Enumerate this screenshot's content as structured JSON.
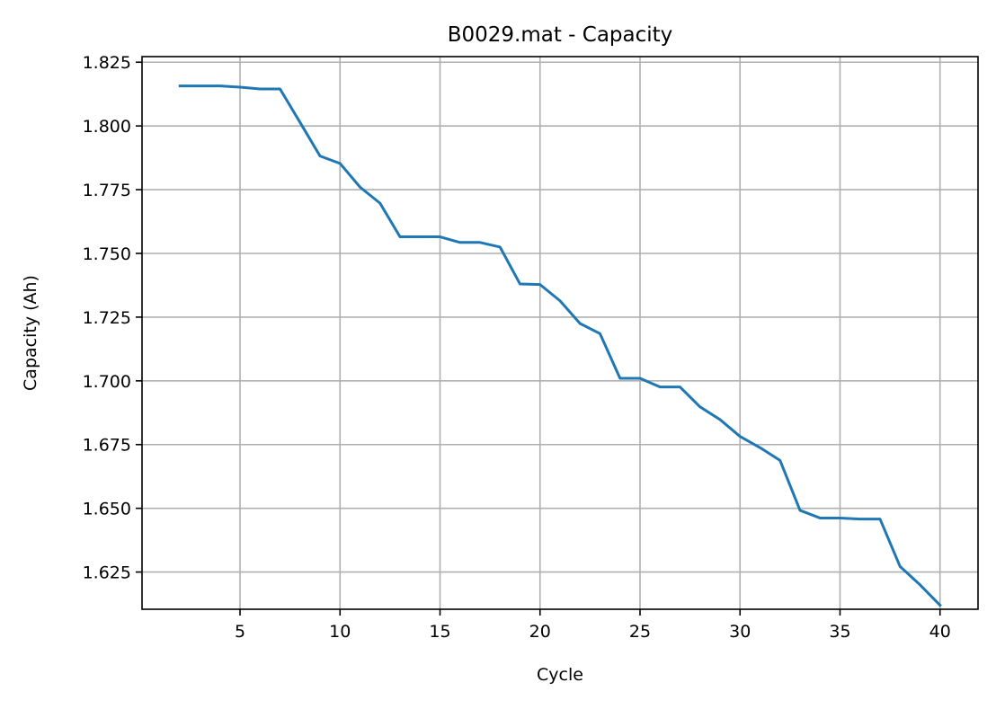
{
  "chart_data": {
    "type": "line",
    "title": "B0029.mat - Capacity",
    "xlabel": "Cycle",
    "ylabel": "Capacity (Ah)",
    "xlim": [
      0.1,
      41.9
    ],
    "ylim": [
      1.6104,
      1.8272
    ],
    "xticks": [
      5,
      10,
      15,
      20,
      25,
      30,
      35,
      40
    ],
    "xtick_labels": [
      "5",
      "10",
      "15",
      "20",
      "25",
      "30",
      "35",
      "40"
    ],
    "yticks": [
      1.625,
      1.65,
      1.675,
      1.7,
      1.725,
      1.75,
      1.775,
      1.8,
      1.825
    ],
    "ytick_labels": [
      "1.625",
      "1.650",
      "1.675",
      "1.700",
      "1.725",
      "1.750",
      "1.775",
      "1.800",
      "1.825"
    ],
    "grid": true,
    "line_color": "#1f77b4",
    "grid_color": "#b0b0b0",
    "series": [
      {
        "x": [
          2,
          3,
          4,
          5,
          6,
          7,
          8,
          9,
          10,
          11,
          12,
          13,
          14,
          15,
          16,
          17,
          18,
          19,
          20,
          21,
          22,
          23,
          24,
          25,
          26,
          27,
          28,
          29,
          30,
          31,
          32,
          33,
          34,
          35,
          36,
          37,
          38,
          39,
          40
        ],
        "values": [
          1.8157,
          1.8157,
          1.8157,
          1.8152,
          1.8145,
          1.8145,
          1.8014,
          1.7882,
          1.7853,
          1.776,
          1.7697,
          1.7565,
          1.7565,
          1.7565,
          1.7543,
          1.7543,
          1.7525,
          1.738,
          1.7378,
          1.7314,
          1.7225,
          1.7185,
          1.701,
          1.701,
          1.6976,
          1.6976,
          1.6898,
          1.6848,
          1.6782,
          1.6738,
          1.6688,
          1.6492,
          1.6462,
          1.6462,
          1.6458,
          1.6458,
          1.6272,
          1.62,
          1.612
        ]
      }
    ]
  }
}
